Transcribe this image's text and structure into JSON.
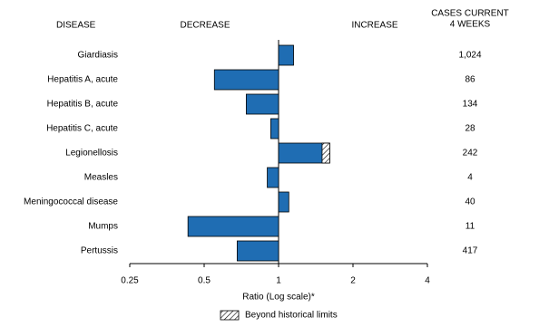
{
  "chart_data": {
    "type": "hbar",
    "disease_header": "DISEASE",
    "decrease_label": "DECREASE",
    "increase_label": "INCREASE",
    "cases_header": [
      "CASES CURRENT",
      "4 WEEKS"
    ],
    "categories": [
      "Giardiasis",
      "Hepatitis A, acute",
      "Hepatitis B, acute",
      "Hepatitis C, acute",
      "Legionellosis",
      "Measles",
      "Meningococcal disease",
      "Mumps",
      "Pertussis"
    ],
    "values": [
      1.15,
      0.55,
      0.74,
      0.93,
      1.61,
      0.9,
      1.1,
      0.43,
      0.68
    ],
    "historical_limits": [
      null,
      null,
      null,
      null,
      1.5,
      null,
      null,
      null,
      null
    ],
    "cases": [
      {
        "value": 1024,
        "label": "1,024"
      },
      86,
      134,
      28,
      242,
      4,
      40,
      11,
      417
    ],
    "color": "#1f6db3",
    "log_scale": true,
    "xlim": [
      0.25,
      4
    ],
    "xticks": [
      0.25,
      0.5,
      1,
      2,
      4
    ],
    "xlabel": "Ratio (Log scale)*",
    "legend": "Beyond historical limits"
  }
}
